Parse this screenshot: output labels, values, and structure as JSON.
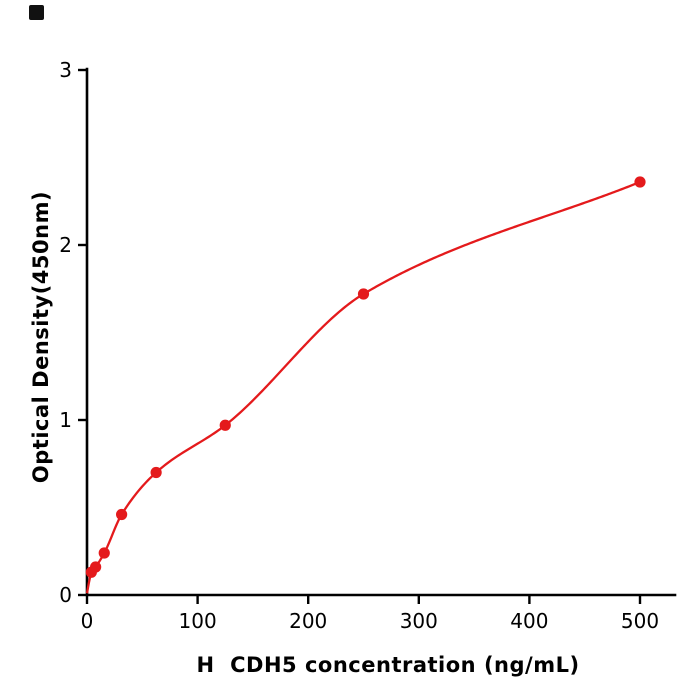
{
  "chart_data": {
    "type": "scatter",
    "title": "",
    "xlabel": "H  CDH5 concentration (ng/mL)",
    "ylabel": "Optical Density(450nm)",
    "x": [
      3.9,
      7.8,
      15.6,
      31.3,
      62.5,
      125,
      250,
      500
    ],
    "y": [
      0.13,
      0.16,
      0.24,
      0.46,
      0.7,
      0.97,
      1.72,
      2.36
    ],
    "fit": "smooth saturation standard curve through the points, anchored near the origin",
    "curve_anchor": {
      "x": 0,
      "y": 0.01
    },
    "x_ticks": [
      0,
      100,
      200,
      300,
      400,
      500
    ],
    "y_ticks": [
      0,
      1,
      2,
      3
    ],
    "xlim": [
      0,
      532
    ],
    "ylim": [
      0,
      3
    ],
    "grid": false,
    "legend": "none",
    "point_color": "#e41a1c",
    "curve_color": "#e41a1c",
    "axis_color": "#000000"
  }
}
